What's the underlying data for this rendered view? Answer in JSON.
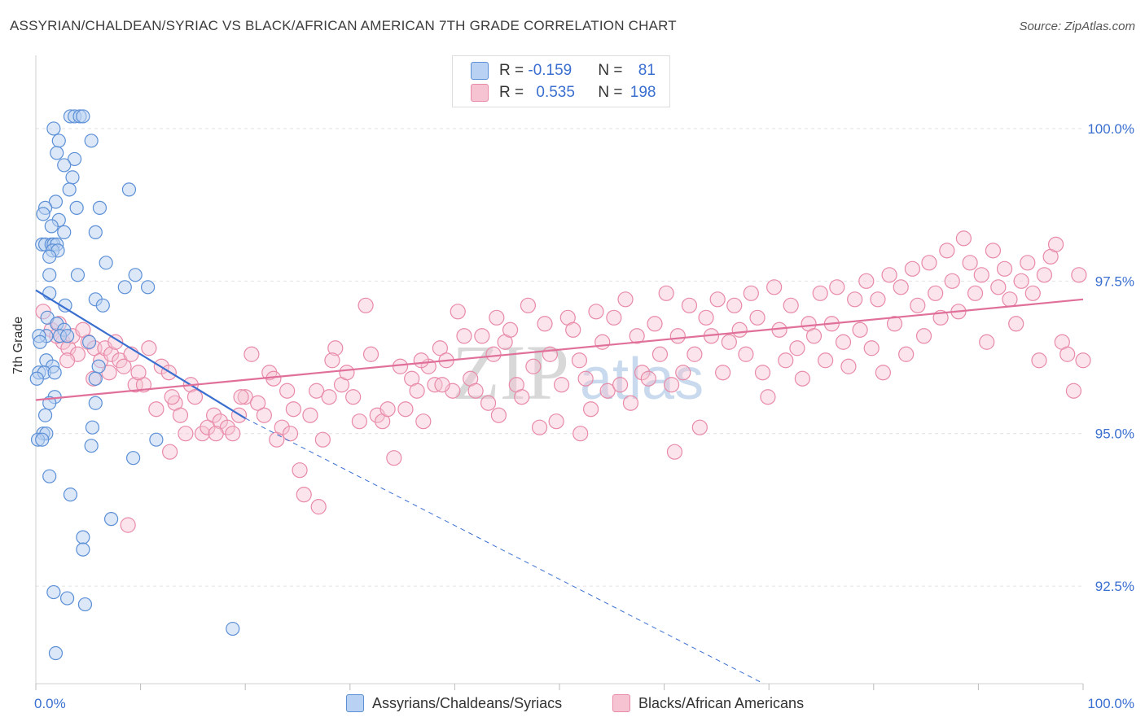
{
  "title": "ASSYRIAN/CHALDEAN/SYRIAC VS BLACK/AFRICAN AMERICAN 7TH GRADE CORRELATION CHART",
  "source": "Source: ZipAtlas.com",
  "watermark": {
    "zip": "ZIP",
    "atlas": "atlas"
  },
  "legend": {
    "blue": {
      "r_label": "R = ",
      "r_value": "-0.159",
      "n_label": "N = ",
      "n_value": "81"
    },
    "pink": {
      "r_label": "R = ",
      "r_value": "0.535",
      "n_label": "N = ",
      "n_value": "198"
    }
  },
  "bottom_legend": {
    "blue": "Assyrians/Chaldeans/Syriacs",
    "pink": "Blacks/African Americans"
  },
  "colors": {
    "blue": "#5b8fd6",
    "blue_fill": "#b9d1f2",
    "blue_line": "#3a6fd0",
    "pink": "#e88aa8",
    "pink_fill": "#f6c3d3",
    "pink_line": "#e0709a",
    "tick_text": "#3a6fd0"
  },
  "chart_data": {
    "type": "scatter",
    "title": "ASSYRIAN/CHALDEAN/SYRIAC VS BLACK/AFRICAN AMERICAN 7TH GRADE CORRELATION CHART",
    "xlabel": "",
    "ylabel": "7th Grade",
    "xlim": [
      0,
      100
    ],
    "ylim": [
      90.9,
      101.2
    ],
    "x_tick_labels": [
      "0.0%",
      "100.0%"
    ],
    "y_ticks": [
      92.5,
      95.0,
      97.5,
      100.0
    ],
    "y_tick_labels": [
      "92.5%",
      "95.0%",
      "97.5%",
      "100.0%"
    ],
    "grid": true,
    "series": [
      {
        "name": "Assyrians/Chaldeans/Syriacs",
        "color": "#5b8fd6",
        "trend": {
          "x": [
            0,
            20
          ],
          "y": [
            97.35,
            95.25
          ],
          "dashed_to": [
            69.5,
            90.9
          ]
        },
        "points": [
          [
            3.3,
            100.2
          ],
          [
            3.7,
            100.2
          ],
          [
            4.2,
            100.2
          ],
          [
            4.5,
            100.2
          ],
          [
            1.7,
            100.0
          ],
          [
            2.2,
            99.8
          ],
          [
            5.3,
            99.8
          ],
          [
            2.0,
            99.6
          ],
          [
            3.7,
            99.5
          ],
          [
            2.7,
            99.4
          ],
          [
            3.5,
            99.2
          ],
          [
            3.2,
            99.0
          ],
          [
            8.9,
            99.0
          ],
          [
            1.9,
            98.8
          ],
          [
            0.9,
            98.7
          ],
          [
            3.9,
            98.7
          ],
          [
            6.1,
            98.7
          ],
          [
            0.7,
            98.6
          ],
          [
            2.2,
            98.5
          ],
          [
            1.5,
            98.4
          ],
          [
            2.7,
            98.3
          ],
          [
            5.7,
            98.3
          ],
          [
            0.6,
            98.1
          ],
          [
            0.9,
            98.1
          ],
          [
            1.5,
            98.1
          ],
          [
            1.7,
            98.1
          ],
          [
            2.0,
            98.1
          ],
          [
            1.6,
            98.0
          ],
          [
            2.1,
            98.0
          ],
          [
            1.3,
            97.9
          ],
          [
            6.7,
            97.8
          ],
          [
            1.3,
            97.6
          ],
          [
            4.0,
            97.6
          ],
          [
            9.5,
            97.6
          ],
          [
            8.5,
            97.4
          ],
          [
            10.7,
            97.4
          ],
          [
            1.3,
            97.3
          ],
          [
            5.7,
            97.2
          ],
          [
            6.4,
            97.1
          ],
          [
            2.8,
            97.1
          ],
          [
            1.1,
            96.9
          ],
          [
            2.0,
            96.8
          ],
          [
            2.7,
            96.7
          ],
          [
            1.0,
            96.6
          ],
          [
            0.3,
            96.6
          ],
          [
            2.3,
            96.6
          ],
          [
            3.0,
            96.6
          ],
          [
            0.4,
            96.5
          ],
          [
            5.1,
            96.5
          ],
          [
            1.0,
            96.2
          ],
          [
            1.6,
            96.1
          ],
          [
            6.0,
            96.1
          ],
          [
            0.3,
            96.0
          ],
          [
            0.8,
            96.0
          ],
          [
            1.8,
            96.0
          ],
          [
            5.7,
            95.9
          ],
          [
            0.1,
            95.9
          ],
          [
            1.8,
            95.6
          ],
          [
            1.3,
            95.5
          ],
          [
            5.7,
            95.5
          ],
          [
            0.9,
            95.3
          ],
          [
            5.4,
            95.1
          ],
          [
            0.7,
            95.0
          ],
          [
            1.0,
            95.0
          ],
          [
            0.2,
            94.9
          ],
          [
            0.6,
            94.9
          ],
          [
            11.5,
            94.9
          ],
          [
            5.3,
            94.8
          ],
          [
            9.3,
            94.6
          ],
          [
            1.3,
            94.3
          ],
          [
            3.3,
            94.0
          ],
          [
            7.2,
            93.6
          ],
          [
            4.5,
            93.3
          ],
          [
            4.5,
            93.1
          ],
          [
            1.7,
            92.4
          ],
          [
            3.0,
            92.3
          ],
          [
            4.7,
            92.2
          ],
          [
            18.8,
            91.8
          ],
          [
            1.9,
            91.4
          ]
        ]
      },
      {
        "name": "Blacks/African Americans",
        "color": "#e88aa8",
        "trend": {
          "x": [
            0,
            100
          ],
          "y": [
            95.55,
            97.2
          ]
        },
        "points": [
          [
            0.7,
            97.0
          ],
          [
            1.5,
            96.7
          ],
          [
            2.2,
            96.8
          ],
          [
            2.6,
            96.5
          ],
          [
            3.1,
            96.4
          ],
          [
            3.5,
            96.6
          ],
          [
            4.0,
            96.3
          ],
          [
            5.0,
            96.5
          ],
          [
            5.6,
            96.4
          ],
          [
            6.2,
            96.2
          ],
          [
            6.6,
            96.4
          ],
          [
            7.2,
            96.3
          ],
          [
            7.6,
            96.5
          ],
          [
            8.0,
            96.2
          ],
          [
            8.4,
            96.1
          ],
          [
            9.1,
            96.3
          ],
          [
            9.5,
            95.8
          ],
          [
            10.3,
            95.8
          ],
          [
            10.8,
            96.4
          ],
          [
            11.5,
            95.4
          ],
          [
            12.0,
            96.1
          ],
          [
            12.7,
            96.0
          ],
          [
            13.3,
            95.5
          ],
          [
            13.8,
            95.3
          ],
          [
            14.3,
            95.0
          ],
          [
            14.8,
            95.8
          ],
          [
            15.2,
            95.6
          ],
          [
            15.9,
            95.0
          ],
          [
            16.4,
            95.1
          ],
          [
            17.0,
            95.3
          ],
          [
            17.6,
            95.2
          ],
          [
            18.3,
            95.1
          ],
          [
            18.8,
            95.0
          ],
          [
            19.4,
            95.3
          ],
          [
            20.0,
            95.6
          ],
          [
            20.6,
            96.3
          ],
          [
            21.2,
            95.5
          ],
          [
            21.8,
            95.3
          ],
          [
            22.3,
            96.0
          ],
          [
            23.0,
            94.9
          ],
          [
            23.5,
            95.1
          ],
          [
            24.0,
            95.7
          ],
          [
            24.6,
            95.4
          ],
          [
            25.2,
            94.4
          ],
          [
            25.6,
            94.0
          ],
          [
            26.2,
            95.3
          ],
          [
            26.8,
            95.7
          ],
          [
            27.4,
            94.9
          ],
          [
            28.0,
            95.6
          ],
          [
            28.6,
            96.4
          ],
          [
            29.2,
            95.8
          ],
          [
            29.7,
            96.0
          ],
          [
            30.3,
            95.6
          ],
          [
            30.9,
            95.2
          ],
          [
            31.5,
            97.1
          ],
          [
            32.0,
            96.3
          ],
          [
            32.6,
            95.3
          ],
          [
            33.1,
            95.2
          ],
          [
            33.6,
            95.4
          ],
          [
            34.2,
            94.6
          ],
          [
            34.8,
            96.1
          ],
          [
            35.3,
            95.4
          ],
          [
            35.9,
            95.9
          ],
          [
            36.4,
            95.7
          ],
          [
            37.0,
            95.2
          ],
          [
            37.5,
            96.1
          ],
          [
            38.1,
            95.8
          ],
          [
            38.6,
            96.4
          ],
          [
            39.2,
            96.2
          ],
          [
            39.8,
            95.7
          ],
          [
            40.3,
            97.0
          ],
          [
            40.9,
            96.6
          ],
          [
            41.5,
            95.9
          ],
          [
            42.0,
            95.7
          ],
          [
            42.6,
            96.6
          ],
          [
            43.2,
            95.5
          ],
          [
            43.7,
            96.3
          ],
          [
            44.2,
            95.3
          ],
          [
            44.8,
            96.5
          ],
          [
            45.3,
            96.7
          ],
          [
            45.9,
            95.8
          ],
          [
            46.4,
            95.6
          ],
          [
            47.0,
            97.1
          ],
          [
            47.5,
            96.1
          ],
          [
            48.1,
            95.1
          ],
          [
            48.6,
            96.8
          ],
          [
            49.1,
            96.3
          ],
          [
            49.7,
            95.2
          ],
          [
            50.2,
            95.8
          ],
          [
            50.8,
            96.9
          ],
          [
            51.3,
            96.7
          ],
          [
            51.9,
            96.2
          ],
          [
            52.5,
            95.9
          ],
          [
            53.0,
            95.4
          ],
          [
            53.5,
            97.0
          ],
          [
            54.1,
            96.5
          ],
          [
            54.6,
            95.7
          ],
          [
            55.2,
            96.9
          ],
          [
            55.8,
            95.8
          ],
          [
            56.3,
            97.2
          ],
          [
            56.8,
            95.5
          ],
          [
            57.4,
            96.6
          ],
          [
            57.9,
            96.0
          ],
          [
            58.5,
            95.9
          ],
          [
            59.1,
            96.8
          ],
          [
            59.6,
            96.3
          ],
          [
            60.2,
            97.3
          ],
          [
            60.7,
            95.8
          ],
          [
            61.3,
            96.6
          ],
          [
            61.8,
            96.0
          ],
          [
            62.4,
            97.1
          ],
          [
            62.9,
            96.3
          ],
          [
            63.4,
            95.1
          ],
          [
            64.0,
            96.9
          ],
          [
            64.5,
            96.6
          ],
          [
            65.1,
            97.2
          ],
          [
            65.6,
            96.0
          ],
          [
            66.2,
            96.5
          ],
          [
            66.7,
            97.1
          ],
          [
            67.2,
            96.7
          ],
          [
            67.8,
            96.3
          ],
          [
            68.3,
            97.3
          ],
          [
            68.9,
            96.9
          ],
          [
            69.4,
            96.0
          ],
          [
            69.9,
            95.6
          ],
          [
            70.5,
            97.4
          ],
          [
            71.0,
            96.7
          ],
          [
            71.6,
            96.2
          ],
          [
            72.1,
            97.1
          ],
          [
            72.7,
            96.4
          ],
          [
            73.2,
            95.9
          ],
          [
            73.8,
            96.8
          ],
          [
            74.3,
            96.6
          ],
          [
            74.9,
            97.3
          ],
          [
            75.4,
            96.2
          ],
          [
            76.0,
            96.8
          ],
          [
            76.5,
            97.4
          ],
          [
            77.1,
            96.5
          ],
          [
            77.6,
            96.1
          ],
          [
            78.2,
            97.2
          ],
          [
            78.7,
            96.7
          ],
          [
            79.3,
            97.5
          ],
          [
            79.8,
            96.4
          ],
          [
            80.4,
            97.2
          ],
          [
            80.9,
            96.0
          ],
          [
            81.5,
            97.6
          ],
          [
            82.0,
            96.8
          ],
          [
            82.6,
            97.4
          ],
          [
            83.1,
            96.3
          ],
          [
            83.7,
            97.7
          ],
          [
            84.2,
            97.1
          ],
          [
            84.8,
            96.6
          ],
          [
            85.3,
            97.8
          ],
          [
            85.9,
            97.3
          ],
          [
            86.4,
            96.9
          ],
          [
            87.0,
            98.0
          ],
          [
            87.5,
            97.5
          ],
          [
            88.1,
            97.0
          ],
          [
            88.6,
            98.2
          ],
          [
            89.2,
            97.8
          ],
          [
            89.7,
            97.3
          ],
          [
            90.3,
            97.6
          ],
          [
            90.8,
            96.5
          ],
          [
            91.4,
            98.0
          ],
          [
            91.9,
            97.4
          ],
          [
            92.5,
            97.7
          ],
          [
            93.0,
            97.2
          ],
          [
            93.6,
            96.8
          ],
          [
            94.1,
            97.5
          ],
          [
            94.7,
            97.8
          ],
          [
            95.2,
            97.3
          ],
          [
            95.8,
            96.2
          ],
          [
            96.3,
            97.6
          ],
          [
            96.9,
            97.9
          ],
          [
            97.4,
            98.1
          ],
          [
            98.0,
            96.5
          ],
          [
            98.5,
            96.3
          ],
          [
            99.1,
            95.7
          ],
          [
            99.6,
            97.6
          ],
          [
            100.0,
            96.2
          ],
          [
            3.0,
            96.2
          ],
          [
            5.5,
            95.9
          ],
          [
            8.8,
            93.5
          ],
          [
            12.8,
            94.7
          ],
          [
            17.2,
            95.0
          ],
          [
            22.7,
            95.9
          ],
          [
            27.0,
            93.8
          ],
          [
            36.8,
            96.2
          ],
          [
            44.0,
            96.9
          ],
          [
            61.0,
            94.7
          ],
          [
            2.0,
            96.6
          ],
          [
            4.5,
            96.7
          ],
          [
            7.0,
            96.0
          ],
          [
            9.8,
            96.0
          ],
          [
            13.0,
            95.6
          ],
          [
            19.6,
            95.6
          ],
          [
            24.3,
            95.0
          ],
          [
            28.3,
            96.2
          ],
          [
            38.8,
            95.8
          ],
          [
            52.0,
            95.0
          ]
        ]
      }
    ]
  }
}
